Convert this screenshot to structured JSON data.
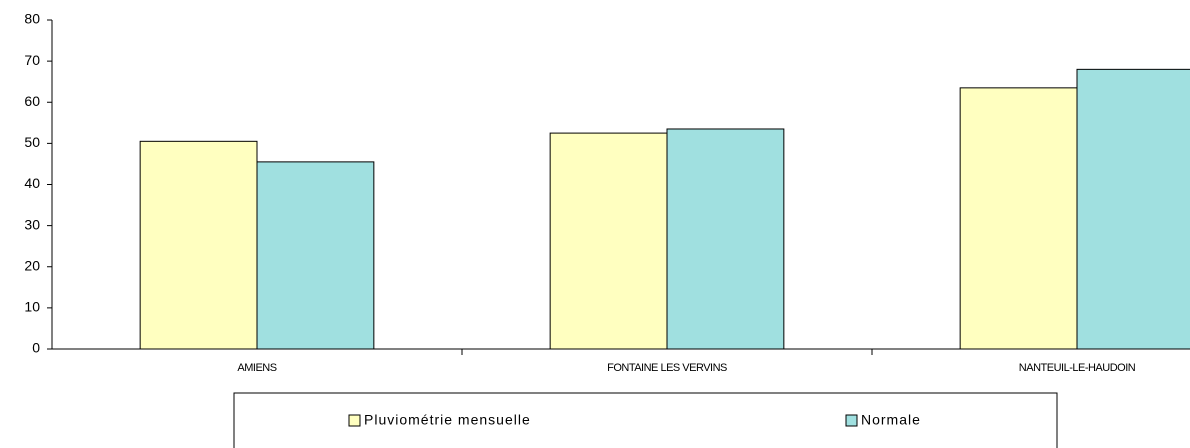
{
  "chart_data": {
    "type": "bar",
    "categories": [
      "AMIENS",
      "FONTAINE LES VERVINS",
      "NANTEUIL-LE-HAUDOIN"
    ],
    "series": [
      {
        "name": "Pluviométrie mensuelle",
        "color": "#ffffc0",
        "values": [
          50.5,
          52.5,
          63.5
        ]
      },
      {
        "name": "Normale",
        "color": "#a0e0e0",
        "values": [
          45.5,
          53.5,
          68
        ]
      }
    ],
    "ylim": [
      0,
      80
    ],
    "yticks": [
      0,
      10,
      20,
      30,
      40,
      50,
      60,
      70,
      80
    ],
    "grid": false
  }
}
